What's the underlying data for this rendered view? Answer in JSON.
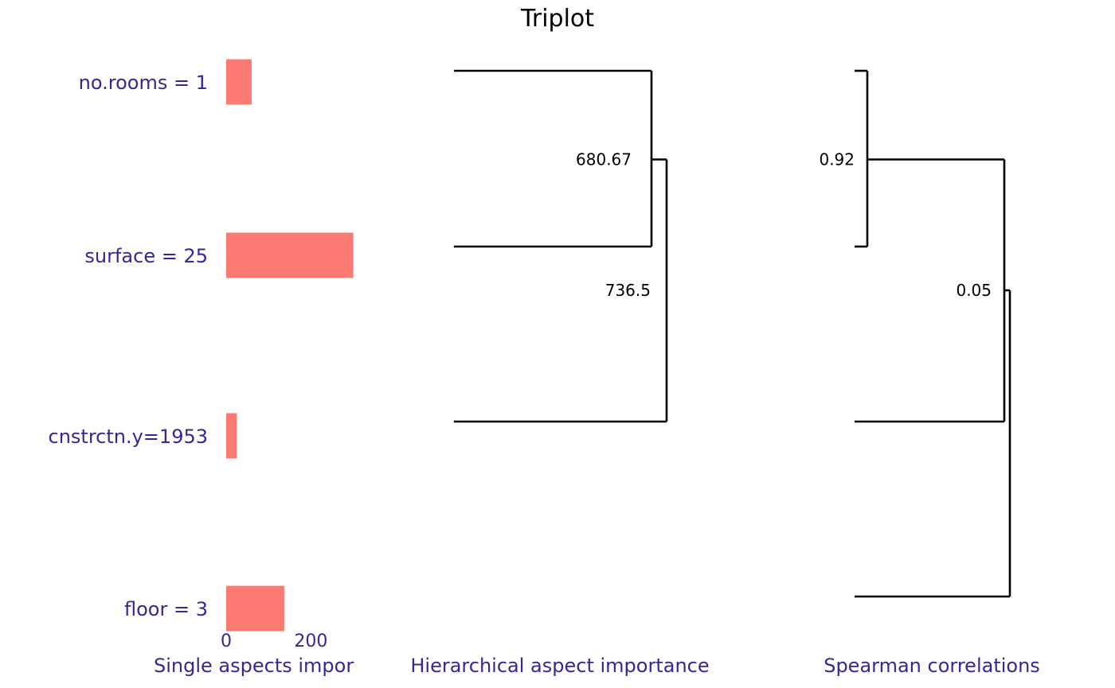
{
  "title": "Triplot",
  "colors": {
    "bar": "#FA7A71",
    "label": "#3B2493",
    "line": "#000000"
  },
  "chart_data": [
    {
      "type": "bar",
      "orientation": "horizontal",
      "categories": [
        "no.rooms = 1",
        "surface = 25",
        "cnstrctn.y=1953",
        "floor = 3"
      ],
      "values": [
        60,
        300,
        25,
        137
      ],
      "xlabel": "Single aspects impor",
      "xticks": [
        "0",
        "200",
        "400",
        "600"
      ],
      "xlim": [
        0,
        660
      ]
    },
    {
      "type": "dendrogram",
      "xlabel": "Hierarchical aspect importance",
      "leaf_order": [
        "no.rooms = 1",
        "surface = 25",
        "cnstrctn.y=1953"
      ],
      "merges": [
        {
          "label": "680.67",
          "height": 680.67,
          "children": [
            "no.rooms = 1",
            "surface = 25"
          ]
        },
        {
          "label": "736.5",
          "height": 736.5,
          "children": [
            "merge-1",
            "cnstrctn.y=1953"
          ]
        }
      ]
    },
    {
      "type": "dendrogram",
      "xlabel": "Spearman correlations",
      "leaf_order": [
        "no.rooms = 1",
        "surface = 25",
        "cnstrctn.y=1953",
        "floor = 3"
      ],
      "merges": [
        {
          "label": "0.92",
          "height": 0.92,
          "children": [
            "no.rooms = 1",
            "surface = 25"
          ]
        },
        {
          "label": "",
          "children": [
            "merge-1",
            "cnstrctn.y=1953"
          ]
        },
        {
          "label": "0.05",
          "height": 0.05,
          "children": [
            "merge-2",
            "floor = 3"
          ]
        }
      ]
    }
  ]
}
